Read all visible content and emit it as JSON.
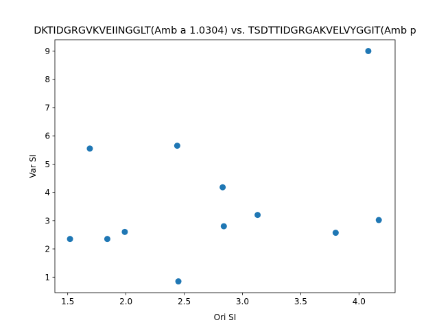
{
  "chart_data": {
    "type": "scatter",
    "title": "DKTIDGRGVKVEIINGGLT(Amb a 1.0304) vs. TSDTTIDGRGAKVELVYGGIT(Amb p",
    "xlabel": "Ori SI",
    "ylabel": "Var SI",
    "xlim": [
      1.39,
      4.31
    ],
    "ylim": [
      0.45,
      9.4
    ],
    "xticks": [
      1.5,
      2.0,
      2.5,
      3.0,
      3.5,
      4.0
    ],
    "xtick_labels": [
      "1.5",
      "2.0",
      "2.5",
      "3.0",
      "3.5",
      "4.0"
    ],
    "yticks": [
      1,
      2,
      3,
      4,
      5,
      6,
      7,
      8,
      9
    ],
    "ytick_labels": [
      "1",
      "2",
      "3",
      "4",
      "5",
      "6",
      "7",
      "8",
      "9"
    ],
    "grid": false,
    "marker_color": "#1f77b4",
    "points": [
      {
        "x": 1.52,
        "y": 2.35
      },
      {
        "x": 1.69,
        "y": 5.55
      },
      {
        "x": 1.84,
        "y": 2.35
      },
      {
        "x": 1.99,
        "y": 2.6
      },
      {
        "x": 2.44,
        "y": 5.65
      },
      {
        "x": 2.45,
        "y": 0.85
      },
      {
        "x": 2.83,
        "y": 4.18
      },
      {
        "x": 2.84,
        "y": 2.8
      },
      {
        "x": 3.13,
        "y": 3.2
      },
      {
        "x": 3.8,
        "y": 2.57
      },
      {
        "x": 4.08,
        "y": 9.0
      },
      {
        "x": 4.17,
        "y": 3.02
      }
    ]
  }
}
